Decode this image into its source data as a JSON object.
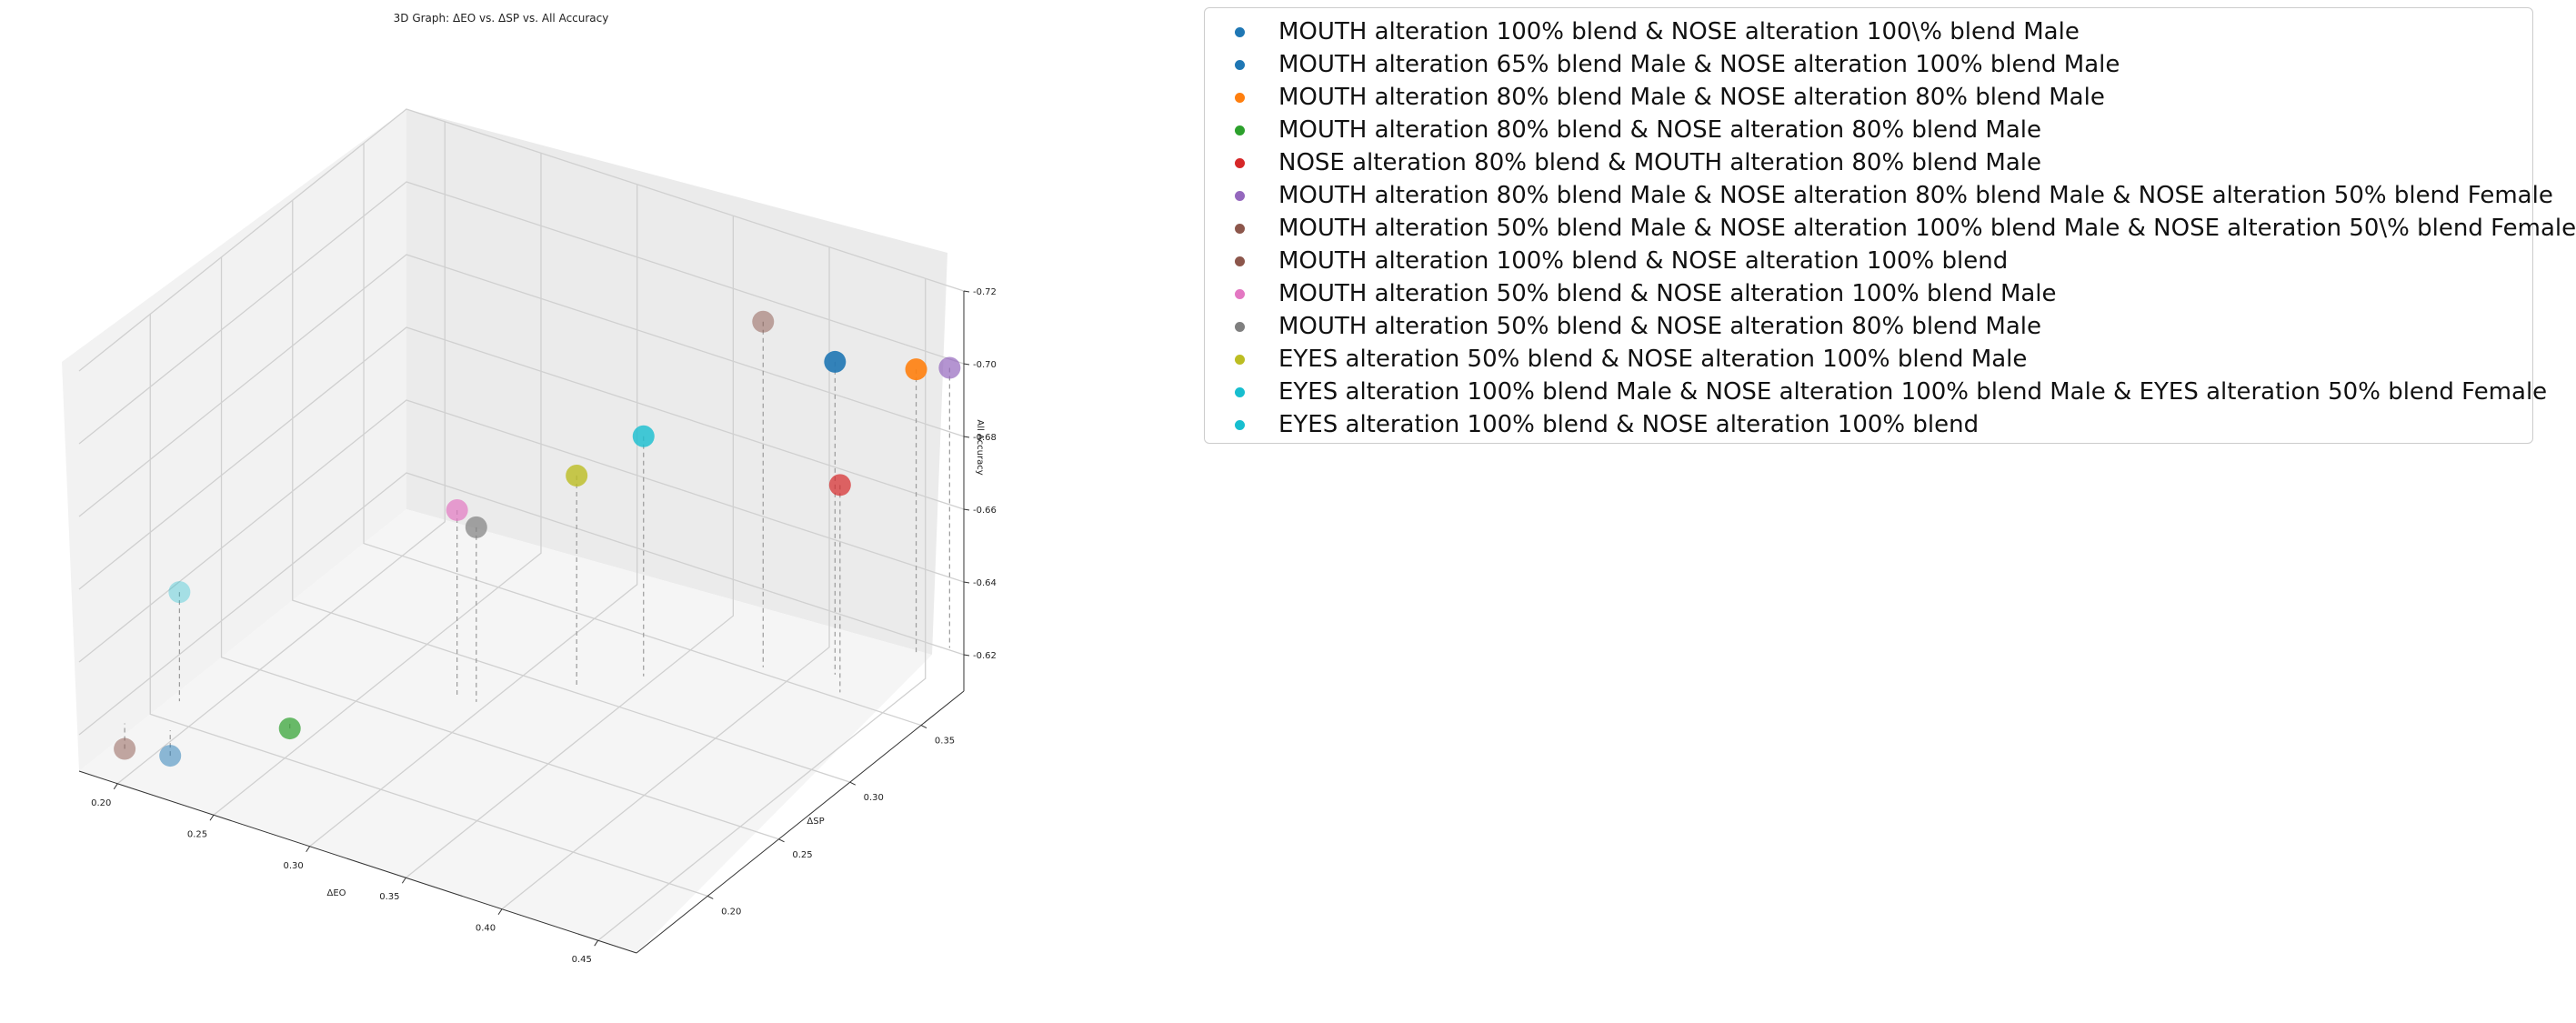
{
  "chart_data": {
    "type": "scatter3d",
    "title": "3D Graph: ΔEO vs. ΔSP vs. All Accuracy",
    "xlabel": "ΔEO",
    "ylabel": "ΔSP",
    "zlabel": "All Accuracy",
    "xlim": [
      0.18,
      0.47
    ],
    "ylim": [
      0.15,
      0.38
    ],
    "zlim": [
      0.61,
      0.72
    ],
    "xticks": [
      "0.20",
      "0.25",
      "0.30",
      "0.35",
      "0.40",
      "0.45"
    ],
    "yticks": [
      "0.20",
      "0.25",
      "0.30",
      "0.35"
    ],
    "zticks": [
      "0.62",
      "0.64",
      "0.66",
      "0.68",
      "0.70",
      "0.72"
    ],
    "grid": true,
    "legend_position": "outside-top-right",
    "series": [
      {
        "name": "MOUTH alteration 100% blend & NOSE alteration 100\\% blend Male",
        "color": "#1f77b4",
        "alpha": 0.5,
        "x": 0.22,
        "y": 0.16,
        "z": 0.618
      },
      {
        "name": "MOUTH alteration 65% blend Male & NOSE alteration 100% blend Male",
        "color": "#1f77b4",
        "alpha": 0.9,
        "x": 0.44,
        "y": 0.33,
        "z": 0.711
      },
      {
        "name": "MOUTH alteration 80% blend Male & NOSE alteration 80% blend Male",
        "color": "#ff7f0e",
        "alpha": 0.9,
        "x": 0.46,
        "y": 0.36,
        "z": 0.703
      },
      {
        "name": "MOUTH alteration 80% blend & NOSE alteration 80% blend Male",
        "color": "#2ca02c",
        "alpha": 0.7,
        "x": 0.26,
        "y": 0.19,
        "z": 0.623
      },
      {
        "name": "NOSE alteration 80% blend & MOUTH alteration 80% blend Male",
        "color": "#d62728",
        "alpha": 0.7,
        "x": 0.45,
        "y": 0.32,
        "z": 0.682
      },
      {
        "name": "MOUTH alteration 80% blend Male & NOSE alteration 80% blend Male & NOSE alteration 50% blend Female",
        "color": "#9467bd",
        "alpha": 0.7,
        "x": 0.47,
        "y": 0.37,
        "z": 0.702
      },
      {
        "name": "MOUTH alteration 50% blend Male & NOSE alteration 100% blend Male & NOSE alteration 50\\% blend Female",
        "color": "#8c564b",
        "alpha": 0.5,
        "x": 0.2,
        "y": 0.155,
        "z": 0.618
      },
      {
        "name": "MOUTH alteration 100% blend & NOSE alteration 100% blend",
        "color": "#8c564b",
        "alpha": 0.5,
        "x": 0.41,
        "y": 0.32,
        "z": 0.72
      },
      {
        "name": "MOUTH alteration 50% blend & NOSE alteration 100% blend Male",
        "color": "#e377c2",
        "alpha": 0.7,
        "x": 0.31,
        "y": 0.24,
        "z": 0.676
      },
      {
        "name": "MOUTH alteration 50% blend & NOSE alteration 80% blend Male",
        "color": "#7f7f7f",
        "alpha": 0.7,
        "x": 0.32,
        "y": 0.24,
        "z": 0.673
      },
      {
        "name": "EYES alteration 50% blend & NOSE alteration 100% blend Male",
        "color": "#bcbd22",
        "alpha": 0.8,
        "x": 0.35,
        "y": 0.27,
        "z": 0.683
      },
      {
        "name": "EYES alteration 100% blend Male & NOSE alteration 100% blend Male & EYES alteration 50% blend Female",
        "color": "#17becf",
        "alpha": 0.35,
        "x": 0.21,
        "y": 0.18,
        "z": 0.655
      },
      {
        "name": "EYES alteration 100% blend & NOSE alteration 100% blend",
        "color": "#17becf",
        "alpha": 0.8,
        "x": 0.37,
        "y": 0.29,
        "z": 0.691
      }
    ]
  }
}
